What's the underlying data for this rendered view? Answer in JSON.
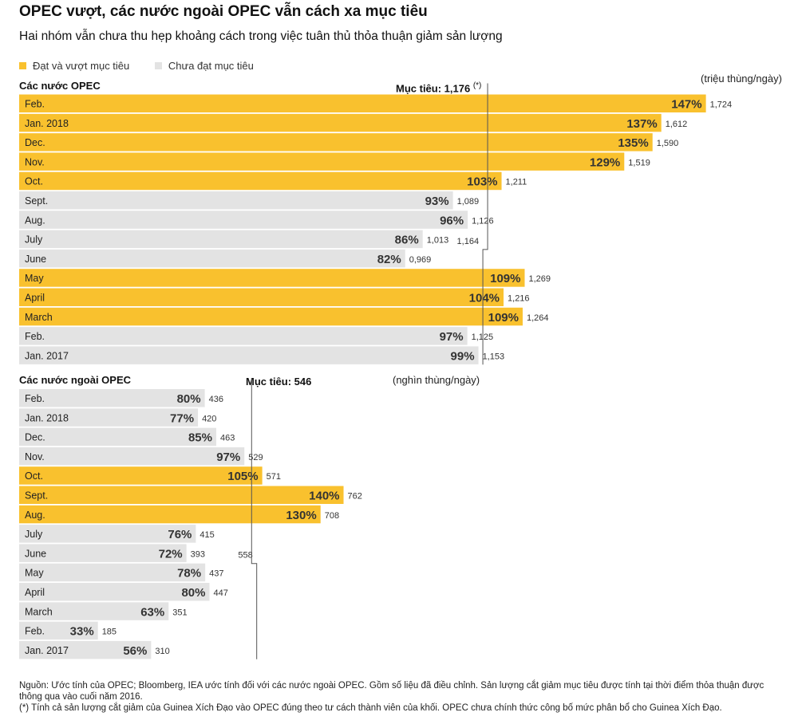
{
  "title": "OPEC vượt, các nước ngoài OPEC vẫn cách xa mục tiêu",
  "subtitle": "Hai nhóm vẫn chưa thu hẹp khoảng cách trong việc tuân thủ thỏa thuận giảm sản lượng",
  "colors": {
    "met": "#f9c12e",
    "not_met": "#e3e3e3",
    "target_line": "#555555"
  },
  "legend": {
    "met_label": "Đạt và vượt mục tiêu",
    "not_met_label": "Chưa đạt mục tiêu"
  },
  "footer": {
    "source": "Nguồn: Ước tính của OPEC; Bloomberg, IEA ước tính đối với các nước ngoài OPEC. Gồm số liệu đã điều chỉnh. Sản lượng cắt giảm mục tiêu được tính tại thời điểm thỏa thuận được thông qua vào cuối năm 2016.",
    "note": "(*) Tính cả sản lượng cắt giảm của Guinea Xích Đạo vào OPEC đúng theo tư cách thành viên của khối. OPEC chưa chính thức công bố mức phân bổ cho Guinea Xích Đạo."
  },
  "chart_data": [
    {
      "type": "bar",
      "orientation": "horizontal",
      "title": "Các nước OPEC",
      "unit": "(triệu thùng/ngày)",
      "target_label": "Mục tiêu: 1,176",
      "target_note": "(*)",
      "target": 1.176,
      "target_segments": [
        {
          "target": 1.176,
          "rows": [
            "Feb.",
            "Jan. 2018",
            "Dec.",
            "Nov.",
            "Oct.",
            "Sept.",
            "Aug.",
            "July"
          ]
        },
        {
          "target": 1.164,
          "label": "1,164",
          "rows": [
            "June",
            "May",
            "April",
            "March",
            "Feb.",
            "Jan. 2017"
          ]
        }
      ],
      "categories": [
        "Feb.",
        "Jan. 2018",
        "Dec.",
        "Nov.",
        "Oct.",
        "Sept.",
        "Aug.",
        "July",
        "June",
        "May",
        "April",
        "March",
        "Feb.",
        "Jan. 2017"
      ],
      "values": [
        1.724,
        1.612,
        1.59,
        1.519,
        1.211,
        1.089,
        1.126,
        1.013,
        0.969,
        1.269,
        1.216,
        1.264,
        1.125,
        1.153
      ],
      "value_labels": [
        "1,724",
        "1,612",
        "1,590",
        "1,519",
        "1,211",
        "1,089",
        "1,126",
        "1,013",
        "0,969",
        "1,269",
        "1,216",
        "1,264",
        "1,125",
        "1,153"
      ],
      "compliance": [
        "147%",
        "137%",
        "135%",
        "129%",
        "103%",
        "93%",
        "96%",
        "86%",
        "82%",
        "109%",
        "104%",
        "109%",
        "97%",
        "99%"
      ],
      "met_target": [
        true,
        true,
        true,
        true,
        true,
        false,
        false,
        false,
        false,
        true,
        true,
        true,
        false,
        false
      ]
    },
    {
      "type": "bar",
      "orientation": "horizontal",
      "title": "Các nước ngoài OPEC",
      "unit": "(nghìn thùng/ngày)",
      "target_label": "Mục tiêu: 546",
      "target": 546,
      "target_segments": [
        {
          "target": 546,
          "rows": [
            "Feb.",
            "Jan. 2018",
            "Dec.",
            "Nov.",
            "Oct.",
            "Sept.",
            "Aug.",
            "July",
            "June"
          ]
        },
        {
          "target": 558,
          "label": "558",
          "rows": [
            "May",
            "April",
            "March",
            "Feb.",
            "Jan. 2017"
          ]
        }
      ],
      "categories": [
        "Feb.",
        "Jan. 2018",
        "Dec.",
        "Nov.",
        "Oct.",
        "Sept.",
        "Aug.",
        "July",
        "June",
        "May",
        "April",
        "March",
        "Feb.",
        "Jan. 2017"
      ],
      "values": [
        436,
        420,
        463,
        529,
        571,
        762,
        708,
        415,
        393,
        437,
        447,
        351,
        185,
        310
      ],
      "value_labels": [
        "436",
        "420",
        "463",
        "529",
        "571",
        "762",
        "708",
        "415",
        "393",
        "437",
        "447",
        "351",
        "185",
        "310"
      ],
      "compliance": [
        "80%",
        "77%",
        "85%",
        "97%",
        "105%",
        "140%",
        "130%",
        "76%",
        "72%",
        "78%",
        "80%",
        "63%",
        "33%",
        "56%"
      ],
      "met_target": [
        false,
        false,
        false,
        false,
        true,
        true,
        true,
        false,
        false,
        false,
        false,
        false,
        false,
        false
      ]
    }
  ]
}
